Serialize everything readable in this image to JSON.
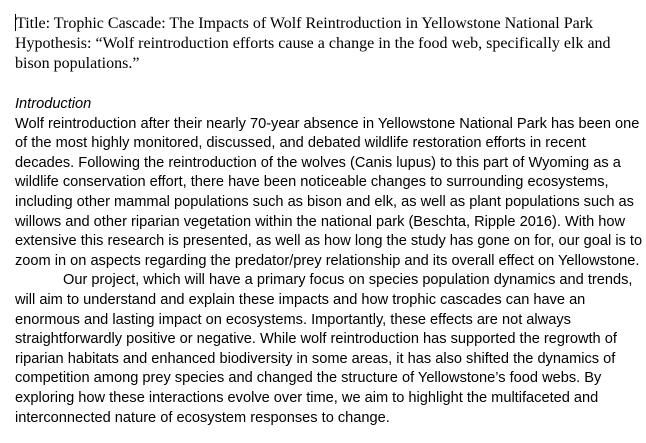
{
  "document": {
    "title_line": "Title: Trophic Cascade: The Impacts of Wolf Reintroduction in Yellowstone National Park",
    "hypothesis": "Hypothesis:  “Wolf reintroduction efforts cause a change in the food web, specifically elk and bison populations.”",
    "section_heading": "Introduction",
    "paragraph_1": "Wolf reintroduction after their nearly 70-year absence in Yellowstone National Park has been one of the most highly monitored, discussed, and debated wildlife restoration efforts in recent decades. Following the reintroduction of the wolves (Canis lupus) to this part of Wyoming as a wildlife conservation effort, there have been noticeable changes to surrounding ecosystems, including other mammal populations such as bison and elk, as well as plant populations such as willows and other riparian vegetation within the national park (Beschta, Ripple 2016). With how extensive this research is presented, as well as how long the study has gone on for, our goal is to zoom in on aspects regarding the predator/prey relationship and its overall effect on Yellowstone.",
    "paragraph_2": "Our project, which will have a primary focus on species population dynamics and trends, will aim to understand and explain these impacts and how trophic cascades can have an enormous and lasting impact on ecosystems. Importantly, these effects are not always straightforwardly positive or negative. While wolf reintroduction has supported the regrowth of riparian habitats and enhanced biodiversity in some areas, it has also shifted the dynamics of competition among prey species and changed the structure of Yellowstone’s food webs. By exploring how these interactions evolve over time, we aim to highlight the multifaceted and interconnected nature of ecosystem responses to change."
  }
}
